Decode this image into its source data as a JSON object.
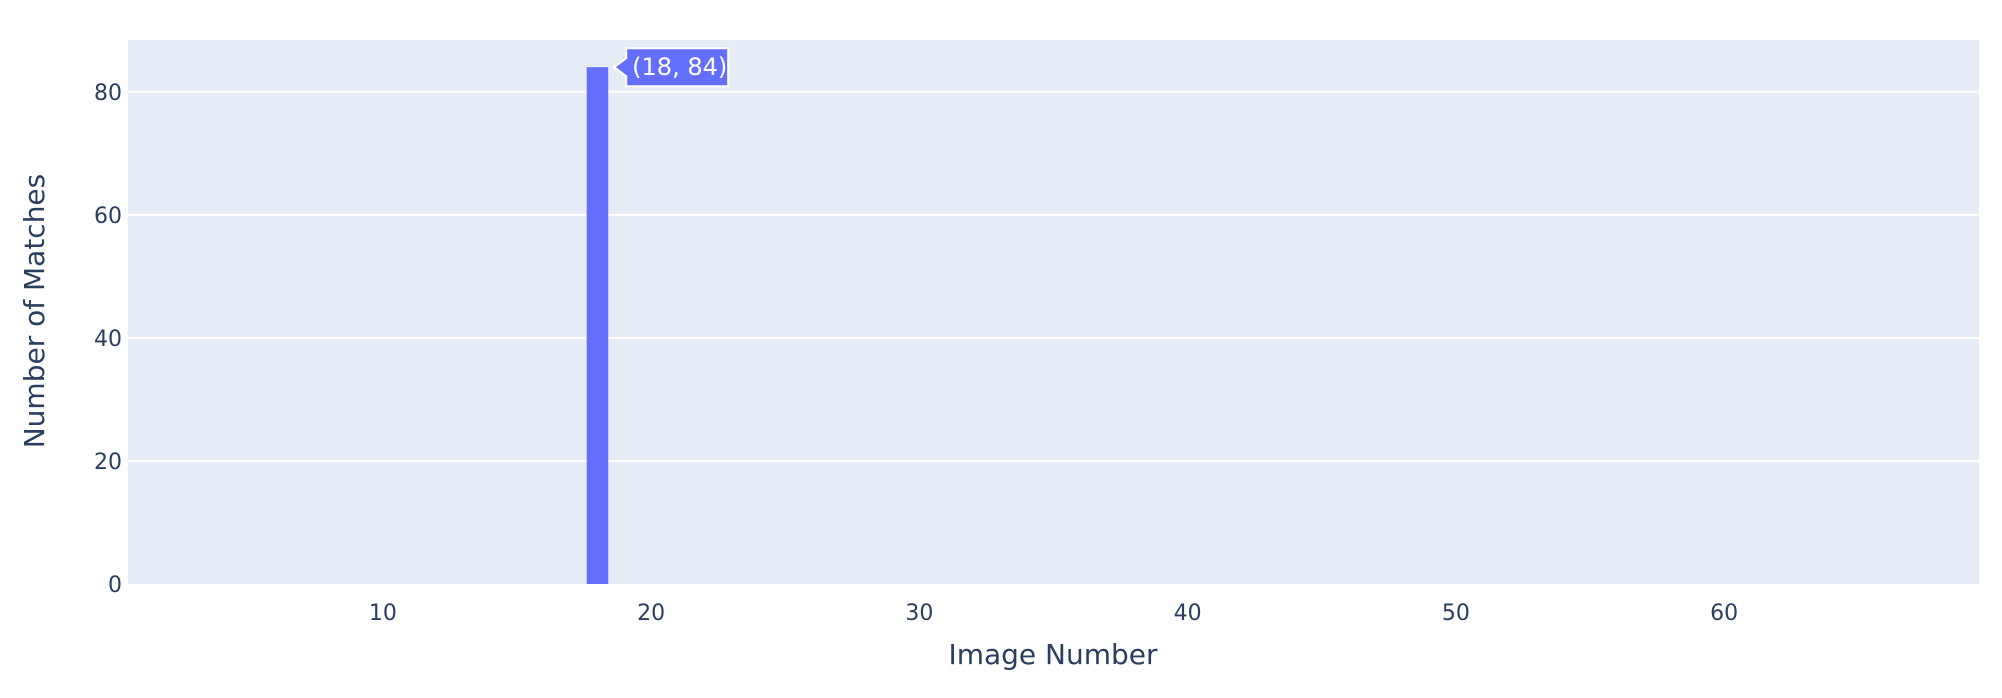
{
  "chart_data": {
    "type": "bar",
    "title": "",
    "xlabel": "Image Number",
    "ylabel": "Number of Matches",
    "xlim": [
      0.5,
      69.5
    ],
    "ylim": [
      0,
      88.42
    ],
    "xticks": [
      10,
      20,
      30,
      40,
      50,
      60
    ],
    "yticks": [
      0,
      20,
      40,
      60,
      80
    ],
    "grid": true,
    "legend": "none",
    "x": [
      18
    ],
    "values": [
      84
    ],
    "hover_label": "(18, 84)"
  },
  "colors": {
    "plot_background": "#e5ecf6",
    "bar": "#636efa",
    "grid": "#ffffff",
    "text": "#2a3f5f"
  }
}
